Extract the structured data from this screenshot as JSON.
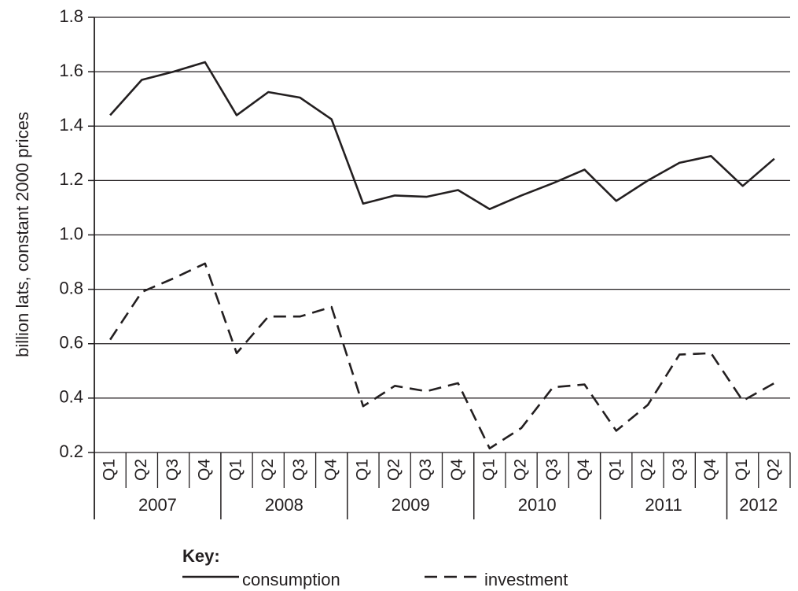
{
  "chart_data": {
    "type": "line",
    "y_label": "billion lats, constant 2000 prices",
    "categories": [
      "Q1",
      "Q2",
      "Q3",
      "Q4",
      "Q1",
      "Q2",
      "Q3",
      "Q4",
      "Q1",
      "Q2",
      "Q3",
      "Q4",
      "Q1",
      "Q2",
      "Q3",
      "Q4",
      "Q1",
      "Q2",
      "Q3",
      "Q4",
      "Q1",
      "Q2"
    ],
    "category_groups": [
      "2007",
      "2008",
      "2009",
      "2010",
      "2011",
      "2012"
    ],
    "series": [
      {
        "name": "consumption",
        "color": "#231f20",
        "dashed": false,
        "values": [
          1.44,
          1.57,
          1.6,
          1.635,
          1.44,
          1.525,
          1.505,
          1.425,
          1.115,
          1.145,
          1.14,
          1.165,
          1.095,
          1.145,
          1.19,
          1.24,
          1.125,
          1.2,
          1.265,
          1.29,
          1.18,
          1.28
        ]
      },
      {
        "name": "investment",
        "color": "#231f20",
        "dashed": true,
        "values": [
          0.615,
          0.79,
          0.84,
          0.895,
          0.565,
          0.7,
          0.7,
          0.735,
          0.37,
          0.445,
          0.425,
          0.455,
          0.215,
          0.29,
          0.44,
          0.45,
          0.28,
          0.375,
          0.56,
          0.565,
          0.39,
          0.455
        ]
      }
    ],
    "legend_title": "Key:",
    "ylim": [
      0.2,
      1.8
    ],
    "yticks": [
      0.2,
      0.4,
      0.6,
      0.8,
      {
        "value": 1,
        "label": "1.0"
      },
      1.2,
      1.4,
      1.6,
      1.8
    ],
    "grid": true
  }
}
